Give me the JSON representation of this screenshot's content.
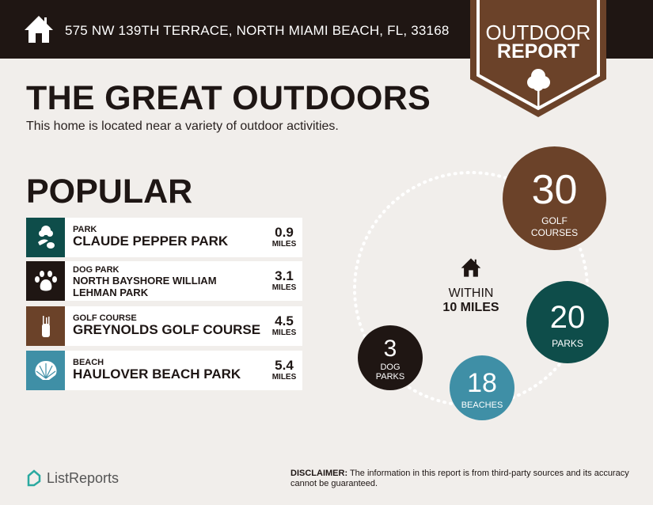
{
  "header": {
    "address": "575 NW 139TH TERRACE, NORTH MIAMI BEACH, FL, 33168",
    "badge_line1": "OUTDOOR",
    "badge_line2": "REPORT"
  },
  "main": {
    "title": "THE GREAT OUTDOORS",
    "subtitle": "This home is located near a variety of outdoor activities.",
    "section": "POPULAR"
  },
  "popular": [
    {
      "category": "PARK",
      "name": "CLAUDE PEPPER PARK",
      "distance": "0.9",
      "unit": "MILES",
      "icon": "park-icon",
      "color": "#0e4d4a"
    },
    {
      "category": "DOG PARK",
      "name": "NORTH BAYSHORE WILLIAM LEHMAN PARK",
      "distance": "3.1",
      "unit": "MILES",
      "icon": "paw-icon",
      "color": "#1f1613"
    },
    {
      "category": "GOLF COURSE",
      "name": "GREYNOLDS GOLF COURSE",
      "distance": "4.5",
      "unit": "MILES",
      "icon": "golf-bag-icon",
      "color": "#6b4229"
    },
    {
      "category": "BEACH",
      "name": "HAULOVER BEACH PARK",
      "distance": "5.4",
      "unit": "MILES",
      "icon": "shell-icon",
      "color": "#3f8fa6"
    }
  ],
  "radius": {
    "line1": "WITHIN",
    "line2": "10 MILES"
  },
  "counts": {
    "golf": {
      "value": "30",
      "label1": "GOLF",
      "label2": "COURSES",
      "color": "#6b4229"
    },
    "parks": {
      "value": "20",
      "label1": "PARKS",
      "color": "#0e4d4a"
    },
    "beaches": {
      "value": "18",
      "label1": "BEACHES",
      "color": "#3f8fa6"
    },
    "dog": {
      "value": "3",
      "label1": "DOG",
      "label2": "PARKS",
      "color": "#1f1613"
    }
  },
  "footer": {
    "brand": "ListReports",
    "disclaimer_label": "DISCLAIMER:",
    "disclaimer_text": " The information in this report is from third-party sources and its accuracy cannot be guaranteed."
  }
}
